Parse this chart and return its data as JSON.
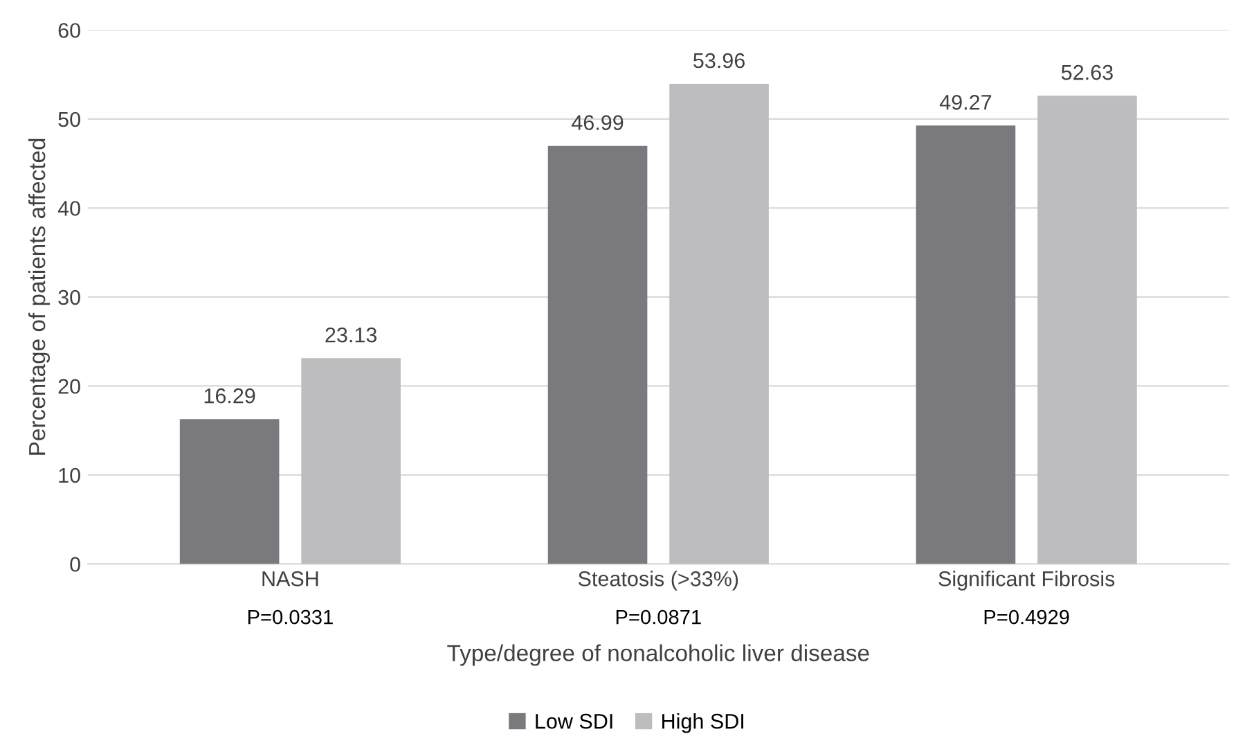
{
  "chart_data": {
    "type": "bar",
    "xlabel": "Type/degree of nonalcoholic liver disease",
    "ylabel": "Percentage of patients affected",
    "categories": [
      "NASH",
      "Steatosis (>33%)",
      "Significant Fibrosis"
    ],
    "series": [
      {
        "name": "Low SDI",
        "color": "#7a7a7e",
        "values": [
          16.29,
          46.99,
          49.27
        ]
      },
      {
        "name": "High SDI",
        "color": "#bdbdc0",
        "values": [
          23.13,
          53.96,
          52.63
        ]
      }
    ],
    "annotations": [
      "P=0.0331",
      "P=0.0871",
      "P=0.4929"
    ],
    "ylim": [
      0,
      60
    ],
    "yticks": [
      0,
      10,
      20,
      30,
      40,
      50,
      60
    ],
    "grid": "y",
    "legend": "bottom",
    "data_labels": true
  }
}
